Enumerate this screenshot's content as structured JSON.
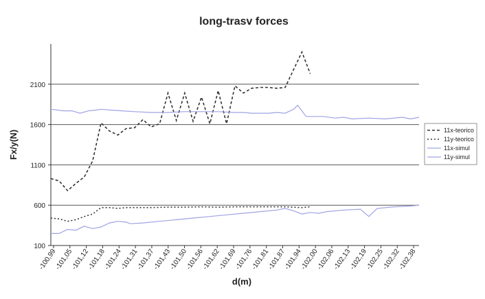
{
  "chart_data": {
    "type": "line",
    "title": "long-trasv forces",
    "xlabel": "d(m)",
    "ylabel": "Fx/y(N)",
    "ylim": [
      100,
      2600
    ],
    "yticks": [
      100,
      600,
      1100,
      1600,
      2100
    ],
    "grid": "horizontal at 600, 1100, 1600, 2100",
    "legend_position": "right",
    "x_tick_labels": [
      "-100,99",
      "-101,05",
      "-101,12",
      "-101,18",
      "-101,24",
      "-101,31",
      "-101,37",
      "-101,43",
      "-101,50",
      "-101,56",
      "-101,62",
      "-101,69",
      "-101,76",
      "-101,81",
      "-101,87",
      "-101,94",
      "-102,00",
      "-102,06",
      "-102,13",
      "-102,19",
      "-102,25",
      "-102,32",
      "-102,38"
    ],
    "n_points": 89,
    "series": [
      {
        "name": "11x-teorico",
        "style": "dashed",
        "color": "#333333",
        "points": [
          [
            0,
            930
          ],
          [
            2,
            900
          ],
          [
            4,
            780
          ],
          [
            6,
            870
          ],
          [
            8,
            950
          ],
          [
            10,
            1150
          ],
          [
            12,
            1620
          ],
          [
            14,
            1520
          ],
          [
            16,
            1470
          ],
          [
            18,
            1550
          ],
          [
            20,
            1560
          ],
          [
            22,
            1660
          ],
          [
            24,
            1570
          ],
          [
            26,
            1610
          ],
          [
            28,
            1990
          ],
          [
            30,
            1650
          ],
          [
            32,
            1990
          ],
          [
            34,
            1640
          ],
          [
            36,
            1940
          ],
          [
            38,
            1610
          ],
          [
            40,
            2020
          ],
          [
            42,
            1610
          ],
          [
            44,
            2080
          ],
          [
            46,
            1990
          ],
          [
            48,
            2050
          ],
          [
            50,
            2060
          ],
          [
            52,
            2060
          ],
          [
            54,
            2050
          ],
          [
            56,
            2060
          ],
          [
            58,
            2280
          ],
          [
            60,
            2500
          ],
          [
            62,
            2230
          ]
        ]
      },
      {
        "name": "11y-teorico",
        "style": "dotted",
        "color": "#333333",
        "points": [
          [
            0,
            440
          ],
          [
            2,
            430
          ],
          [
            4,
            400
          ],
          [
            6,
            420
          ],
          [
            8,
            460
          ],
          [
            10,
            490
          ],
          [
            12,
            570
          ],
          [
            14,
            570
          ],
          [
            16,
            560
          ],
          [
            18,
            570
          ],
          [
            20,
            570
          ],
          [
            24,
            570
          ],
          [
            28,
            575
          ],
          [
            32,
            575
          ],
          [
            36,
            580
          ],
          [
            40,
            575
          ],
          [
            44,
            580
          ],
          [
            48,
            580
          ],
          [
            52,
            580
          ],
          [
            56,
            580
          ],
          [
            60,
            570
          ],
          [
            62,
            580
          ]
        ]
      },
      {
        "name": "11x-simul",
        "style": "solid",
        "color": "#9da3e2",
        "points": [
          [
            0,
            1790
          ],
          [
            3,
            1770
          ],
          [
            5,
            1770
          ],
          [
            7,
            1740
          ],
          [
            9,
            1770
          ],
          [
            11,
            1780
          ],
          [
            12,
            1790
          ],
          [
            14,
            1780
          ],
          [
            17,
            1770
          ],
          [
            20,
            1760
          ],
          [
            24,
            1750
          ],
          [
            28,
            1750
          ],
          [
            32,
            1760
          ],
          [
            36,
            1760
          ],
          [
            40,
            1760
          ],
          [
            44,
            1750
          ],
          [
            46,
            1750
          ],
          [
            48,
            1740
          ],
          [
            52,
            1740
          ],
          [
            54,
            1750
          ],
          [
            56,
            1740
          ],
          [
            58,
            1790
          ],
          [
            59,
            1840
          ],
          [
            61,
            1700
          ],
          [
            65,
            1700
          ],
          [
            68,
            1680
          ],
          [
            70,
            1690
          ],
          [
            72,
            1670
          ],
          [
            76,
            1680
          ],
          [
            80,
            1670
          ],
          [
            84,
            1690
          ],
          [
            86,
            1670
          ],
          [
            88,
            1690
          ]
        ]
      },
      {
        "name": "11y-simul",
        "style": "solid",
        "color": "#9da3e2",
        "points": [
          [
            0,
            250
          ],
          [
            2,
            250
          ],
          [
            4,
            300
          ],
          [
            6,
            290
          ],
          [
            8,
            340
          ],
          [
            10,
            310
          ],
          [
            12,
            330
          ],
          [
            14,
            380
          ],
          [
            16,
            400
          ],
          [
            18,
            390
          ],
          [
            19,
            370
          ],
          [
            22,
            380
          ],
          [
            26,
            400
          ],
          [
            30,
            420
          ],
          [
            34,
            440
          ],
          [
            38,
            460
          ],
          [
            42,
            480
          ],
          [
            46,
            500
          ],
          [
            50,
            520
          ],
          [
            54,
            540
          ],
          [
            56,
            560
          ],
          [
            58,
            530
          ],
          [
            60,
            490
          ],
          [
            62,
            510
          ],
          [
            64,
            500
          ],
          [
            66,
            520
          ],
          [
            70,
            540
          ],
          [
            74,
            550
          ],
          [
            76,
            460
          ],
          [
            78,
            560
          ],
          [
            82,
            580
          ],
          [
            86,
            590
          ],
          [
            88,
            600
          ]
        ]
      }
    ]
  }
}
